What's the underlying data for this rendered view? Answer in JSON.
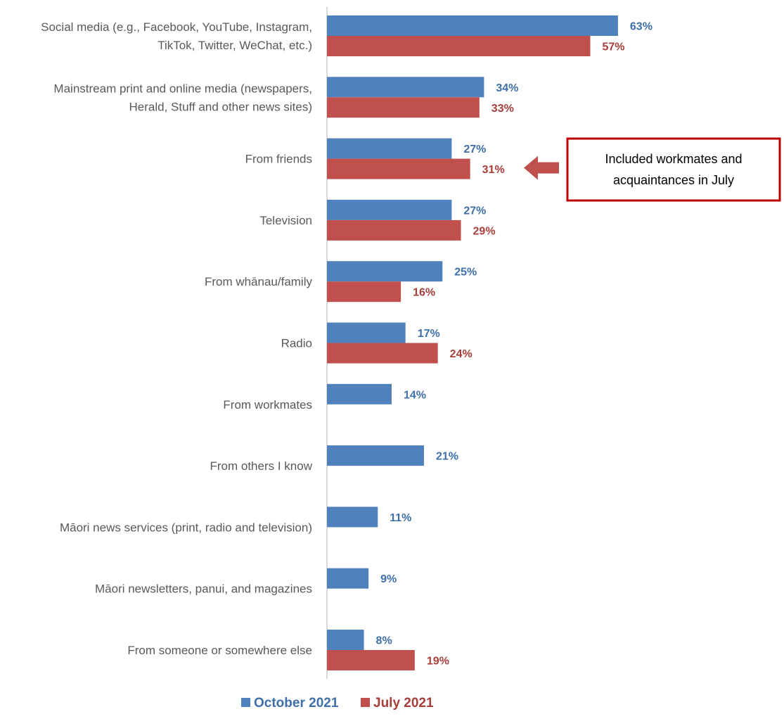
{
  "chart_data": {
    "type": "bar",
    "orientation": "horizontal",
    "title": "",
    "xlabel": "",
    "ylabel": "",
    "xlim": [
      0,
      70
    ],
    "grid": false,
    "legend_position": "bottom",
    "categories": [
      [
        "Social media (e.g., Facebook, YouTube, Instagram,",
        "TikTok, Twitter, WeChat, etc.)"
      ],
      [
        "Mainstream print and online media (newspapers,",
        "Herald, Stuff and other news sites)"
      ],
      [
        "From friends"
      ],
      [
        "Television"
      ],
      [
        "From whānau/family"
      ],
      [
        "Radio"
      ],
      [
        "From workmates"
      ],
      [
        "From others I know"
      ],
      [
        "Māori news services (print, radio and television)"
      ],
      [
        "Māori newsletters, panui, and magazines"
      ],
      [
        "From someone or somewhere else"
      ]
    ],
    "series": [
      {
        "name": "October 2021",
        "color": "#4F81BD",
        "values": [
          63,
          34,
          27,
          27,
          25,
          17,
          14,
          21,
          11,
          9,
          8
        ],
        "labels": [
          "63%",
          "34%",
          "27%",
          "27%",
          "25%",
          "17%",
          "14%",
          "21%",
          "11%",
          "9%",
          "8%"
        ]
      },
      {
        "name": "July 2021",
        "color": "#C0504D",
        "values": [
          57,
          33,
          31,
          29,
          16,
          24,
          null,
          null,
          null,
          null,
          19
        ],
        "labels": [
          "57%",
          "33%",
          "31%",
          "29%",
          "16%",
          "24%",
          null,
          null,
          null,
          null,
          "19%"
        ]
      }
    ],
    "label_colors": {
      "October 2021": "#3F6FA8",
      "July 2021": "#A63E3A"
    },
    "axis_color": "#D9D9D9",
    "annotation": {
      "lines": [
        "Included workmates and",
        "acquaintances in July"
      ],
      "border_color": "#C00000",
      "arrow_color": "#C0504D",
      "target_category": 2
    }
  }
}
